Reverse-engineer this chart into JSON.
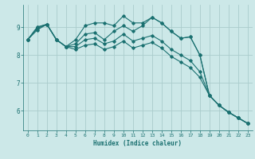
{
  "title": "",
  "xlabel": "Humidex (Indice chaleur)",
  "ylabel": "",
  "bg_color": "#cce8e8",
  "grid_color": "#aacccc",
  "line_color": "#1a7070",
  "xlim": [
    -0.5,
    23.5
  ],
  "ylim": [
    5.3,
    9.8
  ],
  "yticks": [
    6,
    7,
    8,
    9
  ],
  "xticks": [
    0,
    1,
    2,
    3,
    4,
    5,
    6,
    7,
    8,
    9,
    10,
    11,
    12,
    13,
    14,
    15,
    16,
    17,
    18,
    19,
    20,
    21,
    22,
    23
  ],
  "lines": [
    {
      "x": [
        0,
        1,
        2,
        3,
        4,
        5,
        6,
        7,
        8,
        9,
        10,
        11,
        12,
        13,
        14,
        15,
        16,
        17,
        18,
        19,
        20,
        21,
        22,
        23
      ],
      "y": [
        8.55,
        9.0,
        9.1,
        8.55,
        8.3,
        8.55,
        9.05,
        9.15,
        9.15,
        9.05,
        9.4,
        9.15,
        9.15,
        9.35,
        9.15,
        8.85,
        8.6,
        8.65,
        8.0,
        6.55,
        6.2,
        5.95,
        5.75,
        5.55
      ]
    },
    {
      "x": [
        0,
        1,
        2,
        3,
        4,
        5,
        6,
        7,
        8,
        9,
        10,
        11,
        12,
        13,
        14,
        15,
        16,
        17,
        18,
        19,
        20,
        21,
        22,
        23
      ],
      "y": [
        8.55,
        9.0,
        9.1,
        8.55,
        8.3,
        8.4,
        8.75,
        8.8,
        8.55,
        8.85,
        9.05,
        8.85,
        9.05,
        9.35,
        9.15,
        8.85,
        8.6,
        8.65,
        8.0,
        6.55,
        6.2,
        5.95,
        5.75,
        5.55
      ]
    },
    {
      "x": [
        0,
        1,
        2,
        3,
        4,
        5,
        6,
        7,
        8,
        9,
        10,
        11,
        12,
        13,
        14,
        15,
        16,
        17,
        18,
        19,
        20,
        21,
        22,
        23
      ],
      "y": [
        8.55,
        8.95,
        9.1,
        8.55,
        8.3,
        8.3,
        8.55,
        8.6,
        8.4,
        8.5,
        8.75,
        8.5,
        8.6,
        8.7,
        8.5,
        8.2,
        8.0,
        7.8,
        7.4,
        6.55,
        6.2,
        5.95,
        5.75,
        5.55
      ]
    },
    {
      "x": [
        0,
        1,
        2,
        3,
        4,
        5,
        6,
        7,
        8,
        9,
        10,
        11,
        12,
        13,
        14,
        15,
        16,
        17,
        18,
        19,
        20,
        21,
        22,
        23
      ],
      "y": [
        8.55,
        8.9,
        9.1,
        8.55,
        8.3,
        8.2,
        8.35,
        8.4,
        8.2,
        8.3,
        8.5,
        8.25,
        8.35,
        8.45,
        8.25,
        7.95,
        7.75,
        7.55,
        7.2,
        6.55,
        6.2,
        5.95,
        5.75,
        5.55
      ]
    }
  ]
}
